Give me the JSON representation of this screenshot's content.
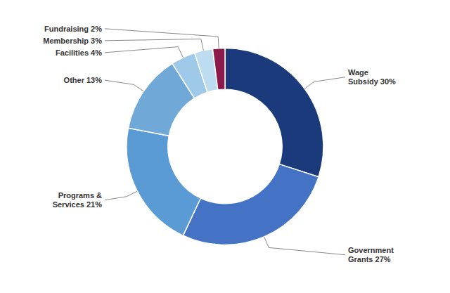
{
  "chart_data": {
    "type": "pie",
    "categories": [
      "Wage\nSubsidy 30%",
      "Government\nGrants 27%",
      "Programs &\nServices 21%",
      "Other 13%",
      "Facilities 4%",
      "Membership 3%",
      "Fundraising 2%"
    ],
    "values": [
      30,
      27,
      21,
      13,
      4,
      3,
      2
    ],
    "colors": [
      "#1a3a7c",
      "#4472c4",
      "#5b9bd5",
      "#70a8d8",
      "#9ec9e8",
      "#bddcf0",
      "#8b1a4a"
    ]
  }
}
